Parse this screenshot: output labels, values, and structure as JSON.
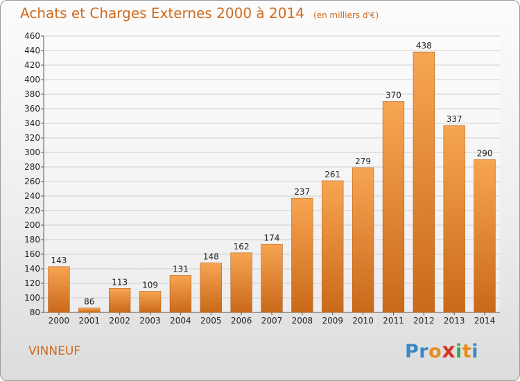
{
  "header": {
    "title": "Achats et Charges Externes 2000 à 2014",
    "subtitle": "(en milliers d'€)"
  },
  "footer": {
    "city": "VINNEUF",
    "logo": "Proxiti"
  },
  "colors": {
    "bar_light": "#f7a552",
    "bar_dark": "#c9691a",
    "text_accent": "#d06a1e",
    "grid": "#cfcfcf"
  },
  "chart_data": {
    "type": "bar",
    "title": "Achats et Charges Externes 2000 à 2014",
    "subtitle": "(en milliers d'€)",
    "categories": [
      "2000",
      "2001",
      "2002",
      "2003",
      "2004",
      "2005",
      "2006",
      "2007",
      "2008",
      "2009",
      "2010",
      "2011",
      "2012",
      "2013",
      "2014"
    ],
    "values": [
      143,
      86,
      113,
      109,
      131,
      148,
      162,
      174,
      237,
      261,
      279,
      370,
      438,
      337,
      290
    ],
    "ylim": [
      80,
      460
    ],
    "ytick_step": 20,
    "grid": true,
    "data_labels": true,
    "xlabel": "",
    "ylabel": ""
  }
}
